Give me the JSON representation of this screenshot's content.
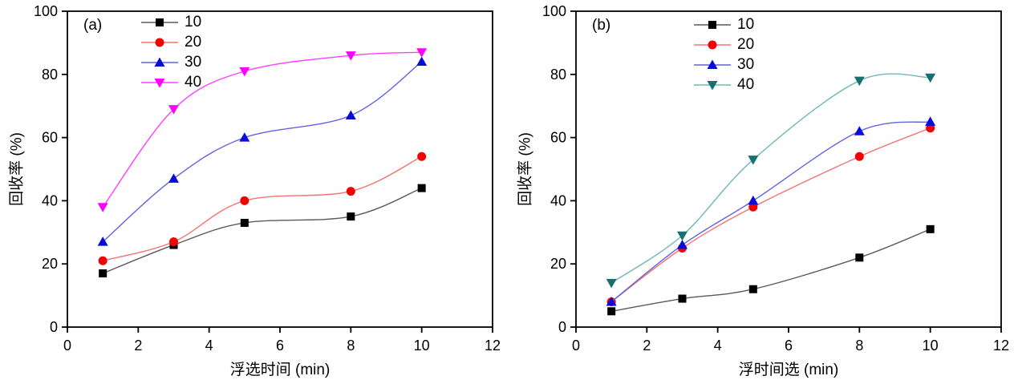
{
  "figure": {
    "background": "#ffffff",
    "axis_color": "#000000"
  },
  "chart_data": [
    {
      "type": "line",
      "panel_label": "(a)",
      "xlabel": "浮选时间 (min)",
      "ylabel": "回收率 (%)",
      "xlim": [
        0,
        12
      ],
      "ylim": [
        0,
        100
      ],
      "xticks": [
        0,
        2,
        4,
        6,
        8,
        10,
        12
      ],
      "yticks": [
        0,
        20,
        40,
        60,
        80,
        100
      ],
      "grid": false,
      "legend_position": "upper-left-inside",
      "x": [
        1,
        3,
        5,
        8,
        10
      ],
      "series": [
        {
          "name": "10",
          "marker": "square",
          "marker_color": "#000000",
          "line_color": "#5a5a5a",
          "values": [
            17,
            26,
            33,
            35,
            44
          ]
        },
        {
          "name": "20",
          "marker": "circle",
          "marker_color": "#f40000",
          "line_color": "#f57373",
          "values": [
            21,
            27,
            40,
            43,
            54
          ]
        },
        {
          "name": "30",
          "marker": "triangle-up",
          "marker_color": "#0b0bd9",
          "line_color": "#6262e3",
          "values": [
            27,
            47,
            60,
            67,
            84
          ]
        },
        {
          "name": "40",
          "marker": "triangle-down",
          "marker_color": "#ff00ff",
          "line_color": "#ff40ff",
          "values": [
            38,
            69,
            81,
            86,
            87
          ]
        }
      ]
    },
    {
      "type": "line",
      "panel_label": "(b)",
      "xlabel": "浮时间选 (min)",
      "ylabel": "回收率 (%)",
      "xlim": [
        0,
        12
      ],
      "ylim": [
        0,
        100
      ],
      "xticks": [
        0,
        2,
        4,
        6,
        8,
        10,
        12
      ],
      "yticks": [
        0,
        20,
        40,
        60,
        80,
        100
      ],
      "grid": false,
      "legend_position": "upper-left-inside",
      "x": [
        1,
        3,
        5,
        8,
        10
      ],
      "series": [
        {
          "name": "10",
          "marker": "square",
          "marker_color": "#000000",
          "line_color": "#5a5a5a",
          "values": [
            5,
            9,
            12,
            22,
            31
          ]
        },
        {
          "name": "20",
          "marker": "circle",
          "marker_color": "#f40000",
          "line_color": "#f57373",
          "values": [
            8,
            25,
            38,
            54,
            63
          ]
        },
        {
          "name": "30",
          "marker": "triangle-up",
          "marker_color": "#0b0bd9",
          "line_color": "#6262e3",
          "values": [
            8,
            26,
            40,
            62,
            65
          ]
        },
        {
          "name": "40",
          "marker": "triangle-down",
          "marker_color": "#17706f",
          "line_color": "#6fb9b9",
          "values": [
            14,
            29,
            53,
            78,
            79
          ]
        }
      ]
    }
  ]
}
